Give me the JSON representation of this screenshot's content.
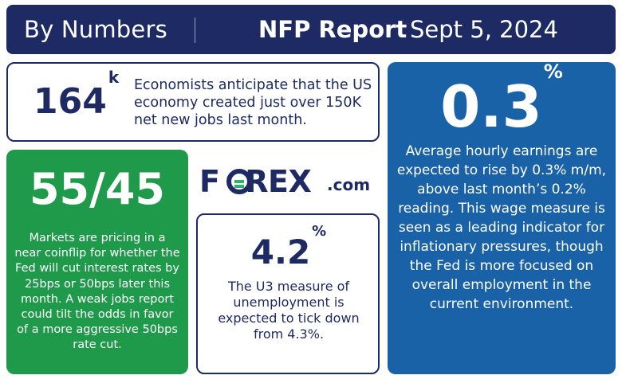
{
  "header": {
    "left_title": "By Numbers",
    "report_title": "NFP Report",
    "report_date": "Sept 5, 2024"
  },
  "jobs": {
    "value": "164",
    "suffix": "k",
    "description": "Economists anticipate that the US economy created just over 150K net new jobs last month."
  },
  "fed": {
    "value": "55/45",
    "description": "Markets are pricing in a near coinflip for whether the Fed will cut interest rates by 25bps or 50bps later this month. A weak jobs report could tilt the odds in favor of a more aggressive 50bps rate cut."
  },
  "logo": {
    "brand": "FOREX",
    "tld": ".com",
    "colors": {
      "navy": "#1e2a64",
      "green": "#2eb36a"
    }
  },
  "unemployment": {
    "value": "4.2",
    "suffix": "%",
    "description": "The U3 measure of unemployment is expected to tick down from 4.3%."
  },
  "wages": {
    "value": "0.3",
    "suffix": "%",
    "description": "Average hourly earnings are expected to rise by 0.3% m/m, above last month’s 0.2% reading. This wage measure is seen as a leading indicator for inflationary pressures, though the Fed is more focused on overall employment in the current environment."
  },
  "colors": {
    "header_bg": "#1e2a64",
    "green_card": "#1f9a4a",
    "blue_card": "#1a62a8"
  }
}
